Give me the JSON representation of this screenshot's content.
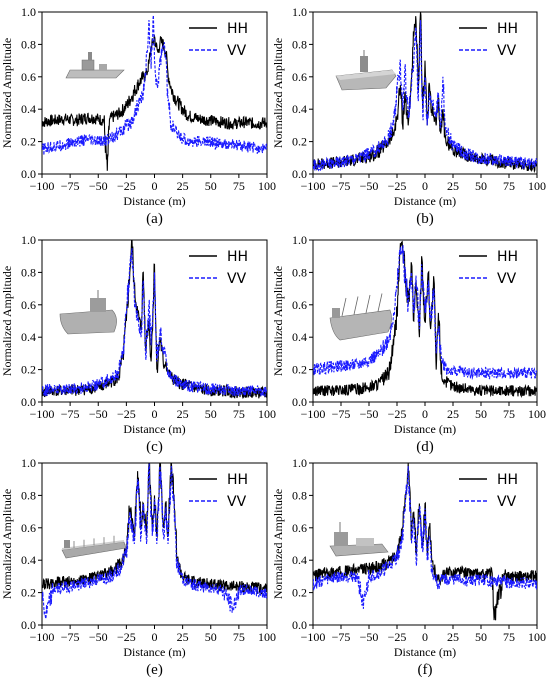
{
  "chart_data": [
    {
      "type": "line",
      "caption": "(a)",
      "xlabel": "Distance (m)",
      "ylabel": "Normalized Amplitude",
      "xlim": [
        -100,
        100
      ],
      "ylim": [
        0.0,
        1.0
      ],
      "xticks": [
        "-100",
        "-75",
        "-50",
        "-25",
        "0",
        "25",
        "50",
        "75",
        "100"
      ],
      "yticks": [
        "0.0",
        "0.2",
        "0.4",
        "0.6",
        "0.8",
        "1.0"
      ],
      "legend": {
        "position": "top-right"
      },
      "ship_icon": "warship-icon",
      "series": [
        {
          "name": "HH",
          "color": "#000000",
          "dash": "solid",
          "x": [
            -100,
            -90,
            -80,
            -70,
            -60,
            -50,
            -45,
            -42,
            -40,
            -35,
            -30,
            -25,
            -20,
            -15,
            -10,
            -7,
            -5,
            -3,
            -1,
            0,
            1,
            3,
            5,
            8,
            10,
            12,
            15,
            20,
            25,
            30,
            40,
            50,
            60,
            70,
            80,
            90,
            100
          ],
          "y": [
            0.32,
            0.33,
            0.34,
            0.33,
            0.35,
            0.34,
            0.33,
            0.02,
            0.34,
            0.36,
            0.38,
            0.42,
            0.48,
            0.55,
            0.6,
            0.62,
            0.68,
            0.78,
            0.82,
            0.85,
            0.8,
            0.75,
            0.82,
            0.8,
            0.75,
            0.62,
            0.52,
            0.45,
            0.4,
            0.36,
            0.34,
            0.33,
            0.32,
            0.31,
            0.32,
            0.31,
            0.32
          ]
        },
        {
          "name": "VV",
          "color": "#1a1aff",
          "dash": "dashed",
          "x": [
            -100,
            -90,
            -80,
            -70,
            -60,
            -50,
            -45,
            -40,
            -30,
            -20,
            -15,
            -10,
            -8,
            -5,
            -3,
            -1,
            0,
            1,
            3,
            5,
            8,
            10,
            12,
            15,
            20,
            25,
            30,
            40,
            50,
            60,
            70,
            80,
            90,
            100
          ],
          "y": [
            0.15,
            0.17,
            0.18,
            0.2,
            0.21,
            0.2,
            0.2,
            0.22,
            0.26,
            0.33,
            0.42,
            0.5,
            0.6,
            0.95,
            0.65,
            0.98,
            0.7,
            0.6,
            0.55,
            0.7,
            0.8,
            0.72,
            0.45,
            0.3,
            0.25,
            0.22,
            0.2,
            0.2,
            0.2,
            0.18,
            0.18,
            0.17,
            0.16,
            0.16
          ]
        }
      ]
    },
    {
      "type": "line",
      "caption": "(b)",
      "xlabel": "Distance (m)",
      "ylabel": "Normalized Amplitude",
      "xlim": [
        -100,
        100
      ],
      "ylim": [
        0.0,
        1.0
      ],
      "xticks": [
        "-100",
        "-75",
        "-50",
        "-25",
        "0",
        "25",
        "50",
        "75",
        "100"
      ],
      "yticks": [
        "0.0",
        "0.2",
        "0.4",
        "0.6",
        "0.8",
        "1.0"
      ],
      "legend": {
        "position": "top-right"
      },
      "ship_icon": "aircraft-carrier-icon",
      "series": [
        {
          "name": "HH",
          "color": "#000000",
          "dash": "solid",
          "x": [
            -100,
            -80,
            -60,
            -45,
            -35,
            -28,
            -25,
            -22,
            -20,
            -18,
            -15,
            -12,
            -10,
            -8,
            -6,
            -4,
            -2,
            0,
            2,
            4,
            6,
            8,
            10,
            12,
            14,
            16,
            18,
            20,
            25,
            35,
            50,
            70,
            100
          ],
          "y": [
            0.06,
            0.07,
            0.09,
            0.12,
            0.18,
            0.25,
            0.35,
            0.55,
            0.3,
            0.5,
            0.3,
            0.6,
            0.85,
            0.95,
            0.5,
            1.0,
            0.4,
            0.7,
            0.3,
            0.55,
            0.4,
            0.35,
            0.3,
            0.45,
            0.25,
            0.4,
            0.22,
            0.2,
            0.15,
            0.12,
            0.09,
            0.07,
            0.05
          ]
        },
        {
          "name": "VV",
          "color": "#1a1aff",
          "dash": "dashed",
          "x": [
            -100,
            -80,
            -60,
            -45,
            -35,
            -28,
            -25,
            -22,
            -20,
            -18,
            -15,
            -12,
            -10,
            -8,
            -6,
            -4,
            -2,
            0,
            2,
            4,
            6,
            8,
            10,
            12,
            14,
            16,
            18,
            20,
            25,
            35,
            50,
            70,
            100
          ],
          "y": [
            0.05,
            0.07,
            0.1,
            0.14,
            0.2,
            0.3,
            0.5,
            0.7,
            0.4,
            0.65,
            0.35,
            0.55,
            0.7,
            0.9,
            0.45,
            0.95,
            0.35,
            0.6,
            0.3,
            0.5,
            0.45,
            0.4,
            0.35,
            0.5,
            0.3,
            0.6,
            0.28,
            0.25,
            0.18,
            0.13,
            0.1,
            0.08,
            0.06
          ]
        }
      ]
    },
    {
      "type": "line",
      "caption": "(c)",
      "xlabel": "Distance (m)",
      "ylabel": "Normalized Amplitude",
      "xlim": [
        -100,
        100
      ],
      "ylim": [
        0.0,
        1.0
      ],
      "xticks": [
        "-100",
        "-75",
        "-50",
        "-25",
        "0",
        "25",
        "50",
        "75",
        "100"
      ],
      "yticks": [
        "0.0",
        "0.2",
        "0.4",
        "0.6",
        "0.8",
        "1.0"
      ],
      "legend": {
        "position": "top-right"
      },
      "ship_icon": "fishing-vessel-icon",
      "series": [
        {
          "name": "HH",
          "color": "#000000",
          "dash": "solid",
          "x": [
            -100,
            -90,
            -75,
            -60,
            -50,
            -40,
            -32,
            -28,
            -25,
            -22,
            -20,
            -18,
            -15,
            -12,
            -10,
            -8,
            -5,
            -3,
            0,
            2,
            5,
            8,
            10,
            12,
            15,
            20,
            30,
            40,
            50,
            60,
            75,
            90,
            100
          ],
          "y": [
            0.06,
            0.07,
            0.07,
            0.08,
            0.09,
            0.12,
            0.15,
            0.28,
            0.5,
            0.8,
            1.0,
            0.7,
            0.55,
            0.45,
            0.8,
            0.35,
            0.5,
            0.25,
            0.85,
            0.2,
            0.4,
            0.22,
            0.25,
            0.18,
            0.15,
            0.12,
            0.1,
            0.08,
            0.07,
            0.07,
            0.06,
            0.06,
            0.05
          ]
        },
        {
          "name": "VV",
          "color": "#1a1aff",
          "dash": "dashed",
          "x": [
            -100,
            -90,
            -75,
            -60,
            -50,
            -40,
            -32,
            -28,
            -25,
            -22,
            -20,
            -18,
            -15,
            -12,
            -10,
            -8,
            -5,
            -3,
            0,
            2,
            5,
            8,
            10,
            12,
            15,
            20,
            30,
            40,
            50,
            60,
            75,
            90,
            100
          ],
          "y": [
            0.07,
            0.08,
            0.08,
            0.09,
            0.11,
            0.14,
            0.18,
            0.3,
            0.55,
            0.85,
            0.95,
            0.65,
            0.5,
            0.4,
            0.75,
            0.3,
            0.6,
            0.35,
            0.8,
            0.25,
            0.45,
            0.3,
            0.3,
            0.2,
            0.16,
            0.12,
            0.1,
            0.09,
            0.08,
            0.08,
            0.07,
            0.07,
            0.06
          ]
        }
      ]
    },
    {
      "type": "line",
      "caption": "(d)",
      "xlabel": "Distance (m)",
      "ylabel": "Normalized Amplitude",
      "xlim": [
        -100,
        100
      ],
      "ylim": [
        0.0,
        1.0
      ],
      "xticks": [
        "-100",
        "-75",
        "-50",
        "-25",
        "0",
        "25",
        "50",
        "75",
        "100"
      ],
      "yticks": [
        "0.0",
        "0.2",
        "0.4",
        "0.6",
        "0.8",
        "1.0"
      ],
      "legend": {
        "position": "top-right"
      },
      "ship_icon": "cargo-ship-icon",
      "series": [
        {
          "name": "HH",
          "color": "#000000",
          "dash": "solid",
          "x": [
            -100,
            -80,
            -60,
            -50,
            -40,
            -32,
            -28,
            -25,
            -22,
            -20,
            -15,
            -12,
            -10,
            -8,
            -5,
            -3,
            0,
            3,
            5,
            8,
            10,
            12,
            15,
            18,
            20,
            25,
            30,
            40,
            50,
            70,
            100
          ],
          "y": [
            0.07,
            0.07,
            0.08,
            0.09,
            0.12,
            0.18,
            0.35,
            0.55,
            0.98,
            0.95,
            0.6,
            0.85,
            0.5,
            0.75,
            0.4,
            0.9,
            0.5,
            0.8,
            0.45,
            0.75,
            0.2,
            0.55,
            0.15,
            0.13,
            0.12,
            0.1,
            0.09,
            0.08,
            0.07,
            0.07,
            0.07
          ]
        },
        {
          "name": "VV",
          "color": "#1a1aff",
          "dash": "dashed",
          "x": [
            -100,
            -80,
            -60,
            -50,
            -40,
            -32,
            -28,
            -25,
            -22,
            -20,
            -15,
            -12,
            -10,
            -8,
            -5,
            -3,
            0,
            3,
            5,
            8,
            10,
            12,
            15,
            18,
            20,
            25,
            30,
            40,
            50,
            70,
            100
          ],
          "y": [
            0.2,
            0.22,
            0.23,
            0.26,
            0.3,
            0.4,
            0.55,
            0.7,
            0.95,
            0.92,
            0.6,
            0.8,
            0.55,
            0.78,
            0.45,
            0.85,
            0.55,
            0.75,
            0.5,
            0.7,
            0.3,
            0.45,
            0.25,
            0.22,
            0.2,
            0.19,
            0.19,
            0.18,
            0.18,
            0.18,
            0.18
          ]
        }
      ]
    },
    {
      "type": "line",
      "caption": "(e)",
      "xlabel": "Distance (m)",
      "ylabel": "Normalized Amplitude",
      "xlim": [
        -100,
        100
      ],
      "ylim": [
        0.0,
        1.0
      ],
      "xticks": [
        "-100",
        "-75",
        "-50",
        "-25",
        "0",
        "25",
        "50",
        "75",
        "100"
      ],
      "yticks": [
        "0.0",
        "0.2",
        "0.4",
        "0.6",
        "0.8",
        "1.0"
      ],
      "legend": {
        "position": "top-right"
      },
      "ship_icon": "tanker-ship-icon",
      "series": [
        {
          "name": "HH",
          "color": "#000000",
          "dash": "solid",
          "x": [
            -100,
            -90,
            -75,
            -60,
            -50,
            -40,
            -30,
            -25,
            -22,
            -18,
            -15,
            -12,
            -10,
            -7,
            -5,
            -2,
            0,
            2,
            5,
            8,
            10,
            12,
            15,
            18,
            20,
            25,
            30,
            40,
            50,
            60,
            75,
            90,
            100
          ],
          "y": [
            0.25,
            0.26,
            0.27,
            0.28,
            0.3,
            0.32,
            0.38,
            0.48,
            0.72,
            0.55,
            0.95,
            0.6,
            0.75,
            0.55,
            1.0,
            0.6,
            0.8,
            0.55,
            1.0,
            0.6,
            0.75,
            0.55,
            1.0,
            0.7,
            0.4,
            0.3,
            0.28,
            0.26,
            0.25,
            0.24,
            0.24,
            0.23,
            0.22
          ]
        },
        {
          "name": "VV",
          "color": "#1a1aff",
          "dash": "dashed",
          "x": [
            -100,
            -97,
            -90,
            -75,
            -60,
            -50,
            -40,
            -30,
            -25,
            -22,
            -18,
            -15,
            -12,
            -10,
            -7,
            -5,
            -2,
            0,
            2,
            5,
            8,
            10,
            12,
            15,
            18,
            20,
            25,
            30,
            40,
            50,
            60,
            70,
            75,
            90,
            100
          ],
          "y": [
            0.2,
            0.05,
            0.22,
            0.24,
            0.26,
            0.28,
            0.3,
            0.36,
            0.45,
            0.7,
            0.5,
            0.9,
            0.55,
            0.72,
            0.5,
            0.98,
            0.55,
            0.78,
            0.5,
            0.98,
            0.55,
            0.72,
            0.5,
            0.98,
            0.65,
            0.38,
            0.28,
            0.26,
            0.24,
            0.23,
            0.22,
            0.1,
            0.22,
            0.21,
            0.2
          ]
        }
      ]
    },
    {
      "type": "line",
      "caption": "(f)",
      "xlabel": "Distance (m)",
      "ylabel": "Normalized Amplitude",
      "xlim": [
        -100,
        100
      ],
      "ylim": [
        0.0,
        1.0
      ],
      "xticks": [
        "-100",
        "-75",
        "-50",
        "-25",
        "0",
        "25",
        "50",
        "75",
        "100"
      ],
      "yticks": [
        "0.0",
        "0.2",
        "0.4",
        "0.6",
        "0.8",
        "1.0"
      ],
      "legend": {
        "position": "top-right"
      },
      "ship_icon": "supply-ship-icon",
      "series": [
        {
          "name": "HH",
          "color": "#000000",
          "dash": "solid",
          "x": [
            -100,
            -90,
            -75,
            -60,
            -50,
            -40,
            -30,
            -25,
            -20,
            -18,
            -15,
            -12,
            -10,
            -8,
            -5,
            -2,
            0,
            2,
            4,
            6,
            8,
            10,
            12,
            15,
            20,
            30,
            40,
            50,
            60,
            62,
            70,
            80,
            90,
            100
          ],
          "y": [
            0.3,
            0.32,
            0.33,
            0.34,
            0.35,
            0.36,
            0.4,
            0.45,
            0.6,
            0.75,
            1.0,
            0.55,
            0.7,
            0.45,
            0.75,
            0.5,
            0.75,
            0.45,
            0.6,
            0.4,
            0.35,
            0.3,
            0.28,
            0.3,
            0.32,
            0.33,
            0.32,
            0.31,
            0.32,
            0.05,
            0.31,
            0.3,
            0.3,
            0.3
          ]
        },
        {
          "name": "VV",
          "color": "#1a1aff",
          "dash": "dashed",
          "x": [
            -100,
            -90,
            -75,
            -60,
            -55,
            -50,
            -40,
            -30,
            -25,
            -20,
            -18,
            -15,
            -12,
            -10,
            -8,
            -5,
            -2,
            0,
            2,
            4,
            6,
            8,
            10,
            12,
            15,
            20,
            30,
            40,
            50,
            60,
            70,
            80,
            90,
            100
          ],
          "y": [
            0.25,
            0.28,
            0.3,
            0.3,
            0.1,
            0.3,
            0.32,
            0.38,
            0.42,
            0.55,
            0.7,
            0.98,
            0.5,
            0.65,
            0.4,
            0.72,
            0.45,
            0.72,
            0.4,
            0.55,
            0.35,
            0.3,
            0.28,
            0.25,
            0.28,
            0.28,
            0.28,
            0.27,
            0.28,
            0.27,
            0.27,
            0.25,
            0.26,
            0.25
          ]
        }
      ]
    }
  ]
}
